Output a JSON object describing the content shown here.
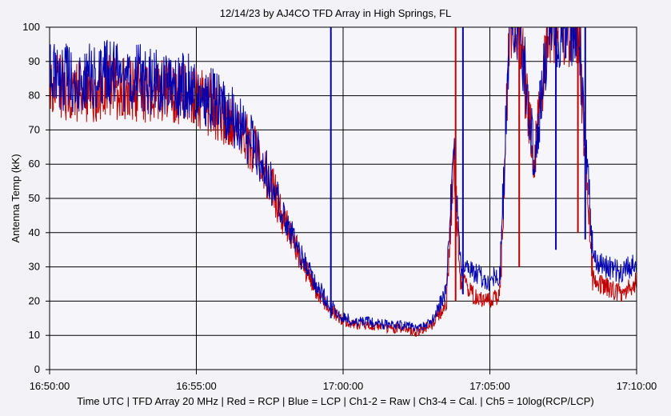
{
  "title": "12/14/23  by  AJ4CO TFD Array  in  High Springs, FL",
  "footer": "Time UTC | TFD Array 20 MHz | Red = RCP | Blue = LCP | Ch1-2 = Raw | Ch3-4 = Cal. | Ch5 = 10log(RCP/LCP)",
  "chart_data": {
    "type": "line",
    "title": "12/14/23  by  AJ4CO TFD Array  in  High Springs, FL",
    "xlabel": "Time UTC | TFD Array 20 MHz | Red = RCP | Blue = LCP | Ch1-2 = Raw | Ch3-4 = Cal. | Ch5 = 10log(RCP/LCP)",
    "ylabel": "Antenna Temp (kK)",
    "xlim": [
      "16:50:00",
      "17:10:00"
    ],
    "ylim": [
      0,
      100
    ],
    "x_ticks": [
      "16:50:00",
      "16:55:00",
      "17:00:00",
      "17:05:00",
      "17:10:00"
    ],
    "y_ticks": [
      0,
      10,
      20,
      30,
      40,
      50,
      60,
      70,
      80,
      90,
      100
    ],
    "grid": true,
    "colors": {
      "RCP": "#c00000",
      "LCP": "#0000b0",
      "grid": "#000000",
      "plot_bg": "#f6f6fa"
    },
    "x": [
      "16:50:00",
      "16:51:00",
      "16:52:00",
      "16:53:00",
      "16:54:00",
      "16:55:00",
      "16:55:30",
      "16:56:00",
      "16:56:30",
      "16:57:00",
      "16:57:30",
      "16:58:00",
      "16:58:30",
      "16:59:00",
      "16:59:30",
      "17:00:00",
      "17:00:30",
      "17:01:00",
      "17:01:30",
      "17:02:00",
      "17:02:30",
      "17:03:00",
      "17:03:30",
      "17:03:45",
      "17:04:00",
      "17:04:30",
      "17:05:00",
      "17:05:20",
      "17:05:40",
      "17:06:00",
      "17:06:30",
      "17:07:00",
      "17:07:30",
      "17:08:00",
      "17:08:30",
      "17:09:00",
      "17:09:30",
      "17:10:00"
    ],
    "series": [
      {
        "name": "RCP",
        "values": [
          84,
          81,
          83,
          82,
          81,
          80,
          77,
          74,
          70,
          64,
          55,
          43,
          33,
          24,
          18,
          14,
          13,
          13,
          12,
          12,
          11,
          13,
          19,
          60,
          26,
          21,
          20,
          22,
          100,
          98,
          60,
          100,
          99,
          100,
          26,
          24,
          22,
          26
        ]
      },
      {
        "name": "LCP",
        "values": [
          86,
          85,
          86,
          85,
          84,
          82,
          79,
          76,
          71,
          65,
          55,
          44,
          34,
          26,
          19,
          15,
          14,
          14,
          13,
          13,
          12,
          14,
          23,
          65,
          31,
          28,
          26,
          28,
          100,
          100,
          62,
          100,
          100,
          100,
          32,
          30,
          28,
          32
        ]
      }
    ],
    "spikes": [
      {
        "x": "16:59:35",
        "ymin": 15,
        "ymax": 100
      },
      {
        "x": "17:03:50",
        "ymin": 20,
        "ymax": 100
      },
      {
        "x": "17:04:05",
        "ymin": 22,
        "ymax": 100
      },
      {
        "x": "17:06:00",
        "ymin": 30,
        "ymax": 100
      },
      {
        "x": "17:07:15",
        "ymin": 35,
        "ymax": 100
      },
      {
        "x": "17:08:00",
        "ymin": 40,
        "ymax": 100
      },
      {
        "x": "17:08:15",
        "ymin": 38,
        "ymax": 100
      }
    ]
  }
}
